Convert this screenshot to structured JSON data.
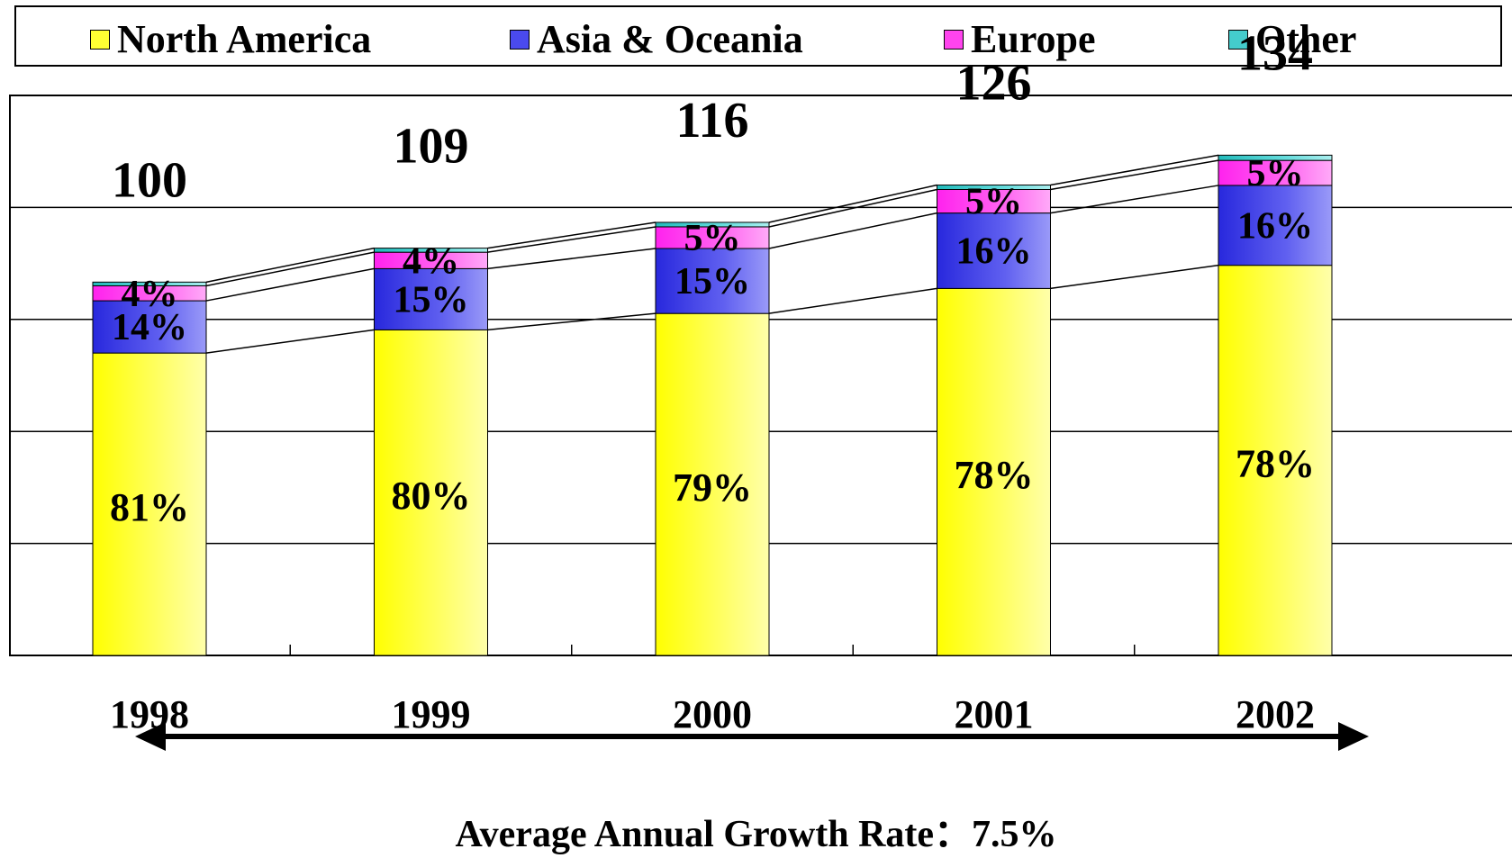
{
  "chart_data": {
    "type": "bar",
    "stacked": true,
    "categories": [
      "1998",
      "1999",
      "2000",
      "2001",
      "2002"
    ],
    "totals": [
      100,
      109,
      116,
      126,
      134
    ],
    "series": [
      {
        "name": "North America",
        "color": "#ffff33",
        "values": [
          81,
          87.2,
          91.6,
          98.3,
          104.5
        ],
        "labels": [
          "81%",
          "80%",
          "79%",
          "78%",
          "78%"
        ]
      },
      {
        "name": "Asia & Oceania",
        "color": "#4a4aee",
        "values": [
          14,
          16.4,
          17.4,
          20.2,
          21.4
        ],
        "labels": [
          "14%",
          "15%",
          "15%",
          "16%",
          "16%"
        ]
      },
      {
        "name": "Europe",
        "color": "#ff44ee",
        "values": [
          4,
          4.4,
          5.8,
          6.3,
          6.7
        ],
        "labels": [
          "4%",
          "4%",
          "5%",
          "5%",
          "5%"
        ]
      },
      {
        "name": "Other",
        "color": "#44cccc",
        "values": [
          1,
          1.1,
          1.2,
          1.2,
          1.4
        ],
        "labels": [
          "",
          "",
          "",
          "",
          ""
        ]
      }
    ],
    "ylim": [
      0,
      150
    ],
    "grid": true,
    "legend": "top",
    "connector_lines": true,
    "annotation": "Average Annual Growth Rate：7.5%"
  }
}
